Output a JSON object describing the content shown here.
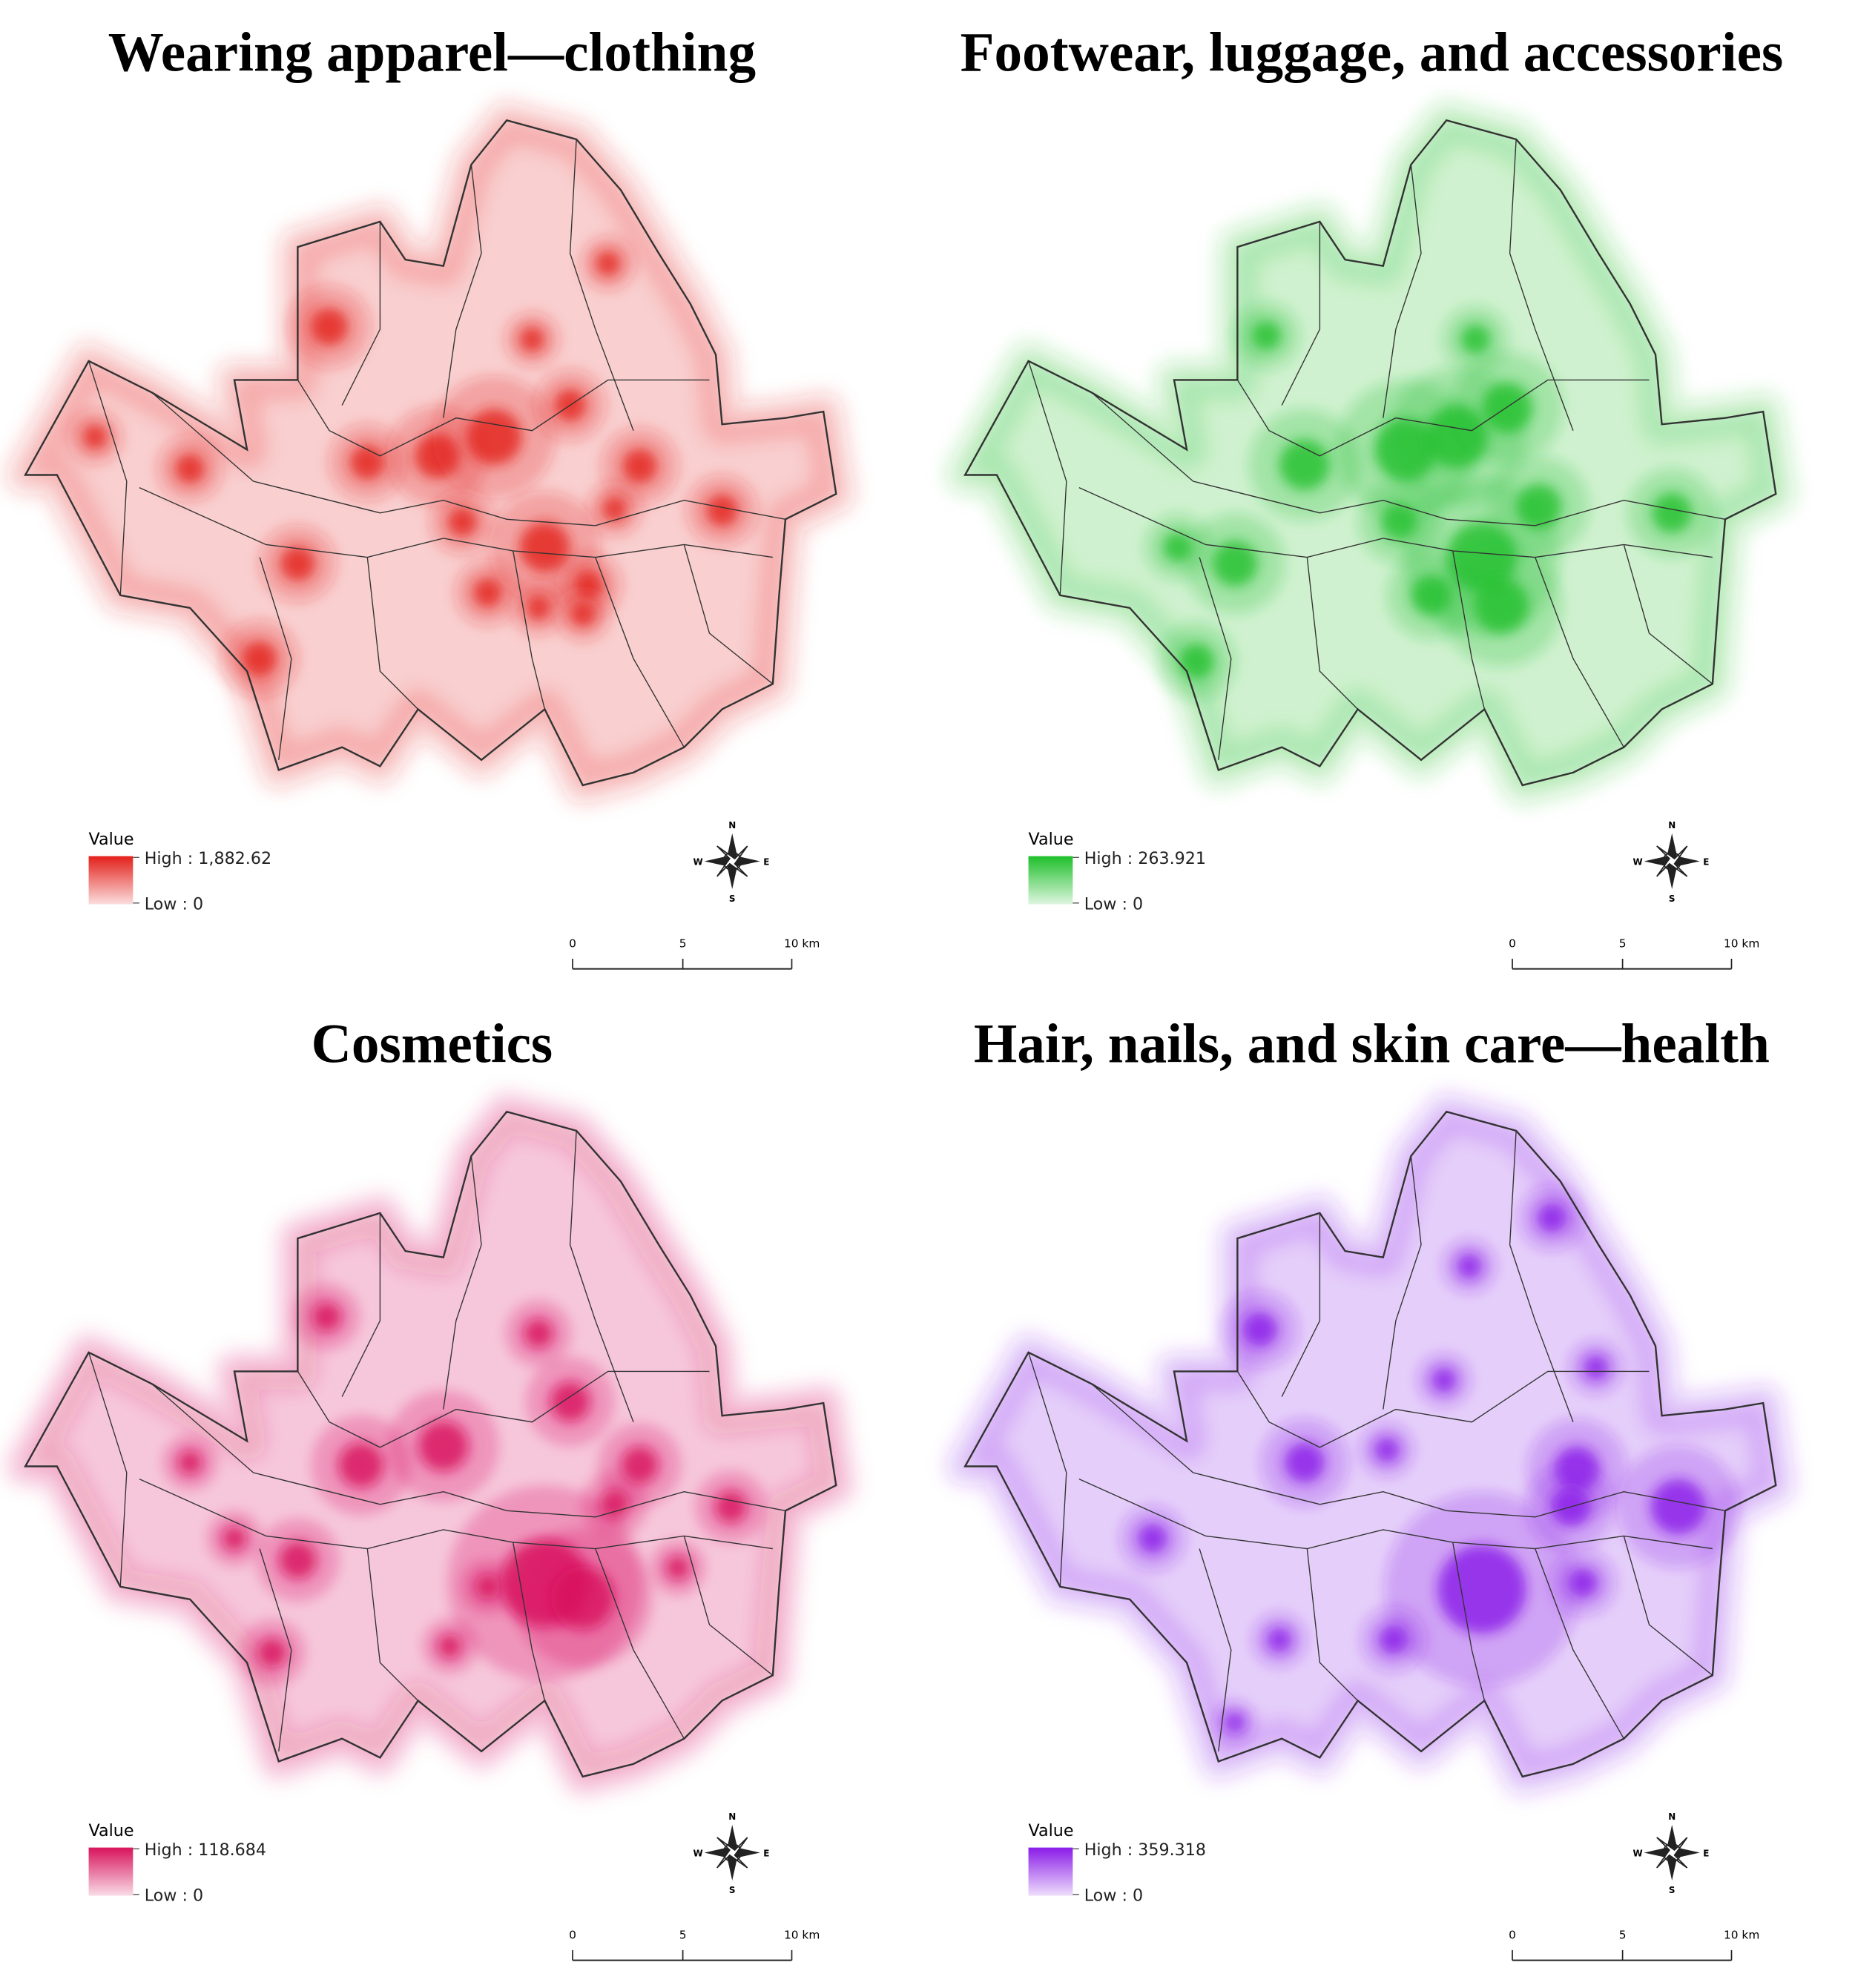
{
  "panels": [
    {
      "title": "Wearing apparel—clothing",
      "color": "#e3201b",
      "legend": {
        "title": "Value",
        "high": "High : 1,882.62",
        "low": "Low : 0"
      }
    },
    {
      "title": "Footwear, luggage, and accessories",
      "color": "#1fbf2a",
      "legend": {
        "title": "Value",
        "high": "High : 263.921",
        "low": "Low : 0"
      }
    },
    {
      "title": "Cosmetics",
      "color": "#d8145c",
      "legend": {
        "title": "Value",
        "high": "High : 118.684",
        "low": "Low : 0"
      }
    },
    {
      "title": "Hair, nails, and skin care—health",
      "color": "#8a1ce8",
      "legend": {
        "title": "Value",
        "high": "High : 359.318",
        "low": "Low : 0"
      }
    }
  ],
  "compass": {
    "n": "N",
    "w": "W",
    "e": "E",
    "s": "S"
  },
  "scale_bar": {
    "ticks": [
      "0",
      "5",
      "10 km"
    ]
  }
}
